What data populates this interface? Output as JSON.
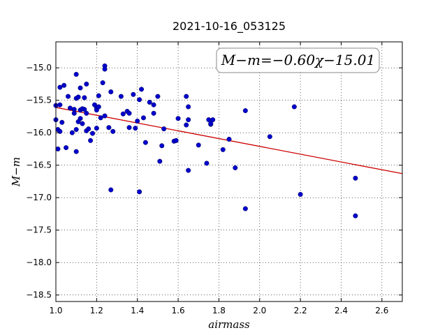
{
  "chart_data": {
    "type": "scatter",
    "title": "2021-10-16_053125",
    "xlabel": "airmass",
    "ylabel": "M−m",
    "xlim": [
      1.0,
      2.7
    ],
    "ylim": [
      -18.6,
      -14.6
    ],
    "y_inverted": true,
    "grid": true,
    "x_ticks": [
      1.0,
      1.2,
      1.4,
      1.6,
      1.8,
      2.0,
      2.2,
      2.4,
      2.6
    ],
    "x_tick_labels": [
      "1.0",
      "1.2",
      "1.4",
      "1.6",
      "1.8",
      "2.0",
      "2.2",
      "2.4",
      "2.6"
    ],
    "y_ticks": [
      -15.0,
      -15.5,
      -16.0,
      -16.5,
      -17.0,
      -17.5,
      -18.0,
      -18.5
    ],
    "y_tick_labels": [
      "−15.0",
      "−15.5",
      "−16.0",
      "−16.5",
      "−17.0",
      "−17.5",
      "−18.0",
      "−18.5"
    ],
    "annotation": "M−m=−0.60χ−15.01",
    "annotation_position": "top-right",
    "fit": {
      "slope": -0.6,
      "intercept": -15.01,
      "color": "#cc0000"
    },
    "marker_color": "#0000cc",
    "points": [
      [
        1.0,
        -15.58
      ],
      [
        1.0,
        -15.8
      ],
      [
        1.01,
        -15.95
      ],
      [
        1.01,
        -16.25
      ],
      [
        1.02,
        -15.3
      ],
      [
        1.02,
        -15.57
      ],
      [
        1.02,
        -15.98
      ],
      [
        1.03,
        -15.84
      ],
      [
        1.04,
        -15.27
      ],
      [
        1.05,
        -16.23
      ],
      [
        1.06,
        -15.44
      ],
      [
        1.07,
        -15.62
      ],
      [
        1.08,
        -16.0
      ],
      [
        1.09,
        -15.7
      ],
      [
        1.09,
        -15.64
      ],
      [
        1.1,
        -15.1
      ],
      [
        1.1,
        -15.47
      ],
      [
        1.1,
        -15.95
      ],
      [
        1.1,
        -16.29
      ],
      [
        1.11,
        -15.45
      ],
      [
        1.11,
        -15.83
      ],
      [
        1.12,
        -15.31
      ],
      [
        1.12,
        -15.65
      ],
      [
        1.12,
        -15.78
      ],
      [
        1.13,
        -15.63
      ],
      [
        1.13,
        -15.86
      ],
      [
        1.14,
        -15.46
      ],
      [
        1.14,
        -15.64
      ],
      [
        1.15,
        -15.25
      ],
      [
        1.15,
        -15.7
      ],
      [
        1.15,
        -15.97
      ],
      [
        1.16,
        -15.94
      ],
      [
        1.17,
        -16.12
      ],
      [
        1.18,
        -16.01
      ],
      [
        1.19,
        -15.57
      ],
      [
        1.2,
        -15.62
      ],
      [
        1.2,
        -15.65
      ],
      [
        1.2,
        -15.93
      ],
      [
        1.21,
        -15.43
      ],
      [
        1.21,
        -15.6
      ],
      [
        1.22,
        -15.77
      ],
      [
        1.23,
        -15.23
      ],
      [
        1.24,
        -15.74
      ],
      [
        1.24,
        -14.97
      ],
      [
        1.24,
        -15.02
      ],
      [
        1.26,
        -15.92
      ],
      [
        1.27,
        -15.37
      ],
      [
        1.27,
        -16.88
      ],
      [
        1.28,
        -15.98
      ],
      [
        1.32,
        -15.44
      ],
      [
        1.33,
        -15.71
      ],
      [
        1.35,
        -15.67
      ],
      [
        1.36,
        -15.7
      ],
      [
        1.36,
        -15.92
      ],
      [
        1.38,
        -15.41
      ],
      [
        1.39,
        -15.93
      ],
      [
        1.4,
        -15.82
      ],
      [
        1.41,
        -15.49
      ],
      [
        1.41,
        -16.91
      ],
      [
        1.42,
        -15.33
      ],
      [
        1.43,
        -15.77
      ],
      [
        1.44,
        -16.15
      ],
      [
        1.46,
        -15.53
      ],
      [
        1.48,
        -15.57
      ],
      [
        1.48,
        -15.7
      ],
      [
        1.5,
        -15.44
      ],
      [
        1.51,
        -16.44
      ],
      [
        1.52,
        -16.2
      ],
      [
        1.53,
        -15.94
      ],
      [
        1.58,
        -16.13
      ],
      [
        1.59,
        -16.12
      ],
      [
        1.6,
        -15.78
      ],
      [
        1.64,
        -15.44
      ],
      [
        1.64,
        -15.88
      ],
      [
        1.65,
        -15.6
      ],
      [
        1.65,
        -15.8
      ],
      [
        1.65,
        -16.58
      ],
      [
        1.7,
        -16.19
      ],
      [
        1.74,
        -16.47
      ],
      [
        1.75,
        -15.8
      ],
      [
        1.76,
        -15.87
      ],
      [
        1.76,
        -15.86
      ],
      [
        1.77,
        -15.8
      ],
      [
        1.82,
        -16.26
      ],
      [
        1.85,
        -16.1
      ],
      [
        1.88,
        -16.54
      ],
      [
        1.93,
        -15.66
      ],
      [
        1.93,
        -17.17
      ],
      [
        2.05,
        -16.06
      ],
      [
        2.17,
        -15.6
      ],
      [
        2.2,
        -16.95
      ],
      [
        2.47,
        -16.7
      ],
      [
        2.47,
        -17.28
      ]
    ]
  }
}
